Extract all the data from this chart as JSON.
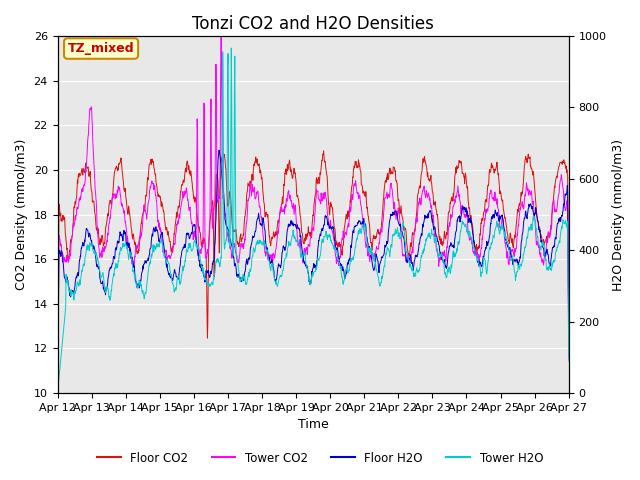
{
  "title": "Tonzi CO2 and H2O Densities",
  "xlabel": "Time",
  "ylabel_left": "CO2 Density (mmol/m3)",
  "ylabel_right": "H2O Density (mmol/m3)",
  "ylim_left": [
    10,
    26
  ],
  "ylim_right": [
    0,
    1000
  ],
  "n_days": 15,
  "n_points": 1440,
  "annotation_text": "TZ_mixed",
  "annotation_color": "#cc0000",
  "annotation_bg": "#ffffcc",
  "annotation_edge": "#cc8800",
  "colors": {
    "floor_co2": "#dd1111",
    "tower_co2": "#ff00ff",
    "floor_h2o": "#0000cc",
    "tower_h2o": "#00cccc"
  },
  "legend_labels": [
    "Floor CO2",
    "Tower CO2",
    "Floor H2O",
    "Tower H2O"
  ],
  "xtick_labels": [
    "Apr 12",
    "Apr 13",
    "Apr 14",
    "Apr 15",
    "Apr 16",
    "Apr 17",
    "Apr 18",
    "Apr 19",
    "Apr 20",
    "Apr 21",
    "Apr 22",
    "Apr 23",
    "Apr 24",
    "Apr 25",
    "Apr 26",
    "Apr 27"
  ],
  "background_color": "#e8e8e8",
  "title_fontsize": 12,
  "axis_label_fontsize": 9,
  "tick_fontsize": 8
}
